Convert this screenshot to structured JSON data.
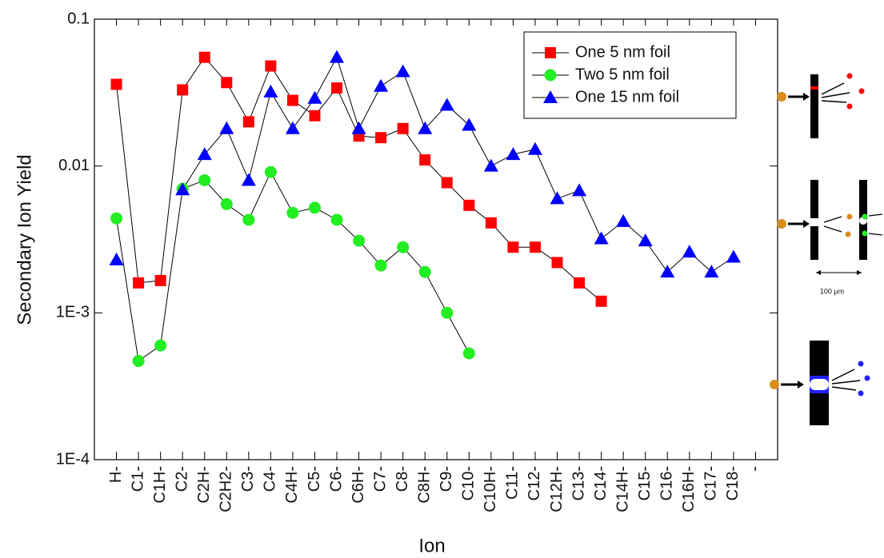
{
  "chart_data": {
    "type": "line",
    "x_label": "Ion",
    "y_label": "Secondary Ion Yield",
    "categories": [
      "H-",
      "C1-",
      "C1H-",
      "C2-",
      "C2H-",
      "C2H2-",
      "C3-",
      "C4-",
      "C4H-",
      "C5-",
      "C6-",
      "C6H-",
      "C7-",
      "C8-",
      "C8H-",
      "C9-",
      "C10-",
      "C10H-",
      "C11-",
      "C12-",
      "C12H-",
      "C13-",
      "C14-",
      "C14H-",
      "C15-",
      "C16-",
      "C16H-",
      "C17-",
      "C18-",
      "-"
    ],
    "series": [
      {
        "name": "One 5 nm foil",
        "color": "#ff0000",
        "marker": "square",
        "values": [
          0.036,
          0.0016,
          0.00166,
          0.033,
          0.055,
          0.037,
          0.02,
          0.048,
          0.028,
          0.022,
          0.034,
          0.016,
          0.0156,
          0.018,
          0.011,
          0.0077,
          0.0054,
          0.0041,
          0.0028,
          0.0028,
          0.0022,
          0.0016,
          0.0012,
          null,
          null,
          null,
          null,
          null,
          null,
          null
        ]
      },
      {
        "name": "Two 5 nm foil",
        "color": "#22ee22",
        "marker": "circle",
        "values": [
          0.0044,
          0.00047,
          0.0006,
          0.007,
          0.008,
          0.0055,
          0.0043,
          0.0091,
          0.0048,
          0.0052,
          0.0043,
          0.0031,
          0.0021,
          0.0028,
          0.0019,
          0.001,
          0.00053,
          null,
          null,
          null,
          null,
          null,
          null,
          null,
          null,
          null,
          null,
          null,
          null,
          null
        ]
      },
      {
        "name": "One 15 nm foil",
        "color": "#0000ff",
        "marker": "triangle",
        "values": [
          0.0023,
          null,
          null,
          0.0069,
          0.012,
          0.018,
          0.008,
          0.032,
          0.018,
          0.029,
          0.055,
          0.018,
          0.035,
          0.044,
          0.018,
          0.026,
          0.019,
          0.01,
          0.012,
          0.013,
          0.006,
          0.0068,
          0.0032,
          0.0042,
          0.0031,
          0.0019,
          0.0026,
          0.0019,
          0.0024,
          null
        ]
      }
    ],
    "ylim": [
      0.0001,
      0.1
    ],
    "log_y": true,
    "yticks": [
      {
        "value": 0.0001,
        "label": "1E-4"
      },
      {
        "value": 0.001,
        "label": "1E-3"
      },
      0.01,
      0.1
    ],
    "legend": "top right",
    "scale_label": "100 μm"
  }
}
